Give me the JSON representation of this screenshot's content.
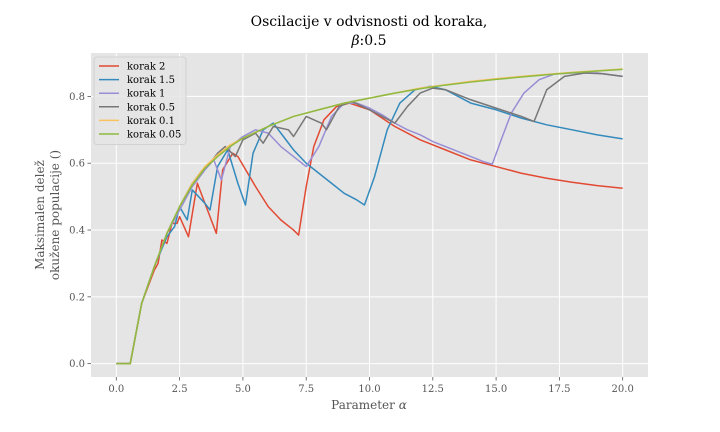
{
  "chart_data": {
    "type": "line",
    "title_line1": "Oscilacije v odvisnosti od koraka,",
    "title_line2_symbol": "β",
    "title_line2_value": ":0.5",
    "xlabel_text": "Parameter ",
    "xlabel_symbol": "α",
    "ylabel_line1": "Maksimalen delež",
    "ylabel_line2": "okužene populacije ()",
    "xlim": [
      -1.0,
      21.0
    ],
    "ylim": [
      -0.04,
      0.93
    ],
    "xticks": [
      0.0,
      2.5,
      5.0,
      7.5,
      10.0,
      12.5,
      15.0,
      17.5,
      20.0
    ],
    "xtick_labels": [
      "0.0",
      "2.5",
      "5.0",
      "7.5",
      "10.0",
      "12.5",
      "15.0",
      "17.5",
      "20.0"
    ],
    "yticks": [
      0.0,
      0.2,
      0.4,
      0.6,
      0.8
    ],
    "ytick_labels": [
      "0.0",
      "0.2",
      "0.4",
      "0.6",
      "0.8"
    ],
    "grid": true,
    "legend_position": "top-left",
    "series": [
      {
        "name": "korak 2",
        "color": "#e24a33",
        "points": [
          [
            0,
            0
          ],
          [
            0.55,
            0
          ],
          [
            1.0,
            0.18
          ],
          [
            1.5,
            0.28
          ],
          [
            1.65,
            0.3
          ],
          [
            1.8,
            0.37
          ],
          [
            2.0,
            0.36
          ],
          [
            2.2,
            0.42
          ],
          [
            2.4,
            0.42
          ],
          [
            2.5,
            0.44
          ],
          [
            2.85,
            0.38
          ],
          [
            3.2,
            0.54
          ],
          [
            3.8,
            0.42
          ],
          [
            3.95,
            0.39
          ],
          [
            4.2,
            0.58
          ],
          [
            4.6,
            0.63
          ],
          [
            4.8,
            0.62
          ],
          [
            5.5,
            0.53
          ],
          [
            6.0,
            0.47
          ],
          [
            6.5,
            0.43
          ],
          [
            7.0,
            0.4
          ],
          [
            7.2,
            0.385
          ],
          [
            7.5,
            0.53
          ],
          [
            7.8,
            0.65
          ],
          [
            8.2,
            0.73
          ],
          [
            8.7,
            0.77
          ],
          [
            9.2,
            0.78
          ],
          [
            10.0,
            0.76
          ],
          [
            11.0,
            0.71
          ],
          [
            12.0,
            0.67
          ],
          [
            13.0,
            0.64
          ],
          [
            14.0,
            0.61
          ],
          [
            15.0,
            0.59
          ],
          [
            16.0,
            0.57
          ],
          [
            17.0,
            0.555
          ],
          [
            18.0,
            0.543
          ],
          [
            19.0,
            0.533
          ],
          [
            20.0,
            0.525
          ]
        ]
      },
      {
        "name": "korak 1.5",
        "color": "#348abd",
        "points": [
          [
            0,
            0
          ],
          [
            0.55,
            0
          ],
          [
            1.0,
            0.18
          ],
          [
            1.5,
            0.29
          ],
          [
            2.0,
            0.38
          ],
          [
            2.3,
            0.41
          ],
          [
            2.5,
            0.47
          ],
          [
            2.8,
            0.43
          ],
          [
            3.0,
            0.52
          ],
          [
            3.5,
            0.48
          ],
          [
            3.7,
            0.46
          ],
          [
            4.0,
            0.59
          ],
          [
            4.4,
            0.64
          ],
          [
            4.8,
            0.54
          ],
          [
            5.1,
            0.475
          ],
          [
            5.4,
            0.63
          ],
          [
            5.8,
            0.7
          ],
          [
            6.2,
            0.72
          ],
          [
            6.6,
            0.68
          ],
          [
            7.0,
            0.64
          ],
          [
            7.5,
            0.6
          ],
          [
            8.0,
            0.57
          ],
          [
            8.5,
            0.54
          ],
          [
            9.0,
            0.51
          ],
          [
            9.5,
            0.49
          ],
          [
            9.8,
            0.475
          ],
          [
            10.2,
            0.56
          ],
          [
            10.7,
            0.7
          ],
          [
            11.2,
            0.78
          ],
          [
            11.8,
            0.82
          ],
          [
            12.4,
            0.83
          ],
          [
            13.0,
            0.82
          ],
          [
            14.0,
            0.78
          ],
          [
            15.0,
            0.76
          ],
          [
            16.0,
            0.735
          ],
          [
            17.0,
            0.715
          ],
          [
            18.0,
            0.7
          ],
          [
            19.0,
            0.685
          ],
          [
            20.0,
            0.673
          ]
        ]
      },
      {
        "name": "korak 1",
        "color": "#988ed5",
        "points": [
          [
            0,
            0
          ],
          [
            0.55,
            0
          ],
          [
            1.0,
            0.18
          ],
          [
            1.5,
            0.29
          ],
          [
            2.0,
            0.39
          ],
          [
            2.5,
            0.46
          ],
          [
            3.0,
            0.53
          ],
          [
            3.5,
            0.58
          ],
          [
            3.85,
            0.61
          ],
          [
            4.15,
            0.55
          ],
          [
            4.5,
            0.65
          ],
          [
            5.0,
            0.68
          ],
          [
            5.5,
            0.7
          ],
          [
            6.0,
            0.69
          ],
          [
            6.5,
            0.65
          ],
          [
            7.0,
            0.62
          ],
          [
            7.5,
            0.59
          ],
          [
            8.0,
            0.65
          ],
          [
            8.5,
            0.74
          ],
          [
            9.0,
            0.78
          ],
          [
            9.5,
            0.78
          ],
          [
            10.0,
            0.765
          ],
          [
            10.5,
            0.745
          ],
          [
            11.0,
            0.72
          ],
          [
            11.5,
            0.7
          ],
          [
            12.0,
            0.685
          ],
          [
            12.5,
            0.665
          ],
          [
            13.0,
            0.65
          ],
          [
            13.5,
            0.635
          ],
          [
            14.0,
            0.62
          ],
          [
            14.5,
            0.605
          ],
          [
            14.85,
            0.597
          ],
          [
            15.2,
            0.67
          ],
          [
            15.6,
            0.75
          ],
          [
            16.1,
            0.81
          ],
          [
            16.7,
            0.85
          ],
          [
            17.3,
            0.867
          ],
          [
            18.0,
            0.87
          ],
          [
            19.0,
            0.87
          ],
          [
            20.0,
            0.86
          ]
        ]
      },
      {
        "name": "korak 0.5",
        "color": "#777777",
        "points": [
          [
            0,
            0
          ],
          [
            0.55,
            0
          ],
          [
            1.0,
            0.18
          ],
          [
            1.5,
            0.29
          ],
          [
            2.0,
            0.39
          ],
          [
            2.5,
            0.47
          ],
          [
            3.0,
            0.54
          ],
          [
            3.4,
            0.58
          ],
          [
            3.7,
            0.6
          ],
          [
            4.0,
            0.63
          ],
          [
            4.3,
            0.65
          ],
          [
            4.7,
            0.62
          ],
          [
            5.0,
            0.67
          ],
          [
            5.5,
            0.69
          ],
          [
            5.8,
            0.66
          ],
          [
            6.2,
            0.71
          ],
          [
            6.8,
            0.7
          ],
          [
            7.0,
            0.68
          ],
          [
            7.5,
            0.74
          ],
          [
            8.1,
            0.72
          ],
          [
            8.3,
            0.7
          ],
          [
            8.8,
            0.77
          ],
          [
            9.3,
            0.785
          ],
          [
            10.0,
            0.76
          ],
          [
            10.5,
            0.74
          ],
          [
            11.0,
            0.72
          ],
          [
            11.5,
            0.77
          ],
          [
            12.0,
            0.81
          ],
          [
            12.5,
            0.825
          ],
          [
            13.0,
            0.82
          ],
          [
            14.0,
            0.79
          ],
          [
            15.0,
            0.765
          ],
          [
            16.0,
            0.74
          ],
          [
            16.5,
            0.725
          ],
          [
            17.0,
            0.82
          ],
          [
            17.7,
            0.86
          ],
          [
            18.5,
            0.87
          ],
          [
            19.2,
            0.868
          ],
          [
            20.0,
            0.86
          ]
        ]
      },
      {
        "name": "korak 0.1",
        "color": "#fbc15e",
        "points": [
          [
            0,
            0
          ],
          [
            0.55,
            0
          ],
          [
            1.0,
            0.18
          ],
          [
            1.5,
            0.29
          ],
          [
            2.0,
            0.39
          ],
          [
            2.5,
            0.47
          ],
          [
            3.0,
            0.54
          ],
          [
            3.5,
            0.59
          ],
          [
            4.0,
            0.625
          ],
          [
            4.5,
            0.655
          ],
          [
            5.0,
            0.675
          ],
          [
            6.0,
            0.71
          ],
          [
            7.0,
            0.74
          ],
          [
            8.0,
            0.76
          ],
          [
            9.0,
            0.78
          ],
          [
            10.0,
            0.795
          ],
          [
            11.0,
            0.81
          ],
          [
            12.0,
            0.825
          ],
          [
            13.0,
            0.835
          ],
          [
            14.0,
            0.845
          ],
          [
            15.0,
            0.853
          ],
          [
            16.0,
            0.86
          ],
          [
            17.0,
            0.866
          ],
          [
            18.0,
            0.872
          ],
          [
            19.0,
            0.877
          ],
          [
            20.0,
            0.882
          ]
        ]
      },
      {
        "name": "korak 0.05",
        "color": "#8eba42",
        "points": [
          [
            0,
            0
          ],
          [
            0.55,
            0
          ],
          [
            1.0,
            0.18
          ],
          [
            1.5,
            0.29
          ],
          [
            2.0,
            0.39
          ],
          [
            2.5,
            0.47
          ],
          [
            3.0,
            0.535
          ],
          [
            3.5,
            0.585
          ],
          [
            4.0,
            0.62
          ],
          [
            4.5,
            0.65
          ],
          [
            5.0,
            0.675
          ],
          [
            6.0,
            0.71
          ],
          [
            7.0,
            0.74
          ],
          [
            8.0,
            0.76
          ],
          [
            9.0,
            0.78
          ],
          [
            10.0,
            0.795
          ],
          [
            11.0,
            0.81
          ],
          [
            12.0,
            0.823
          ],
          [
            13.0,
            0.834
          ],
          [
            14.0,
            0.843
          ],
          [
            15.0,
            0.851
          ],
          [
            16.0,
            0.858
          ],
          [
            17.0,
            0.865
          ],
          [
            18.0,
            0.871
          ],
          [
            19.0,
            0.876
          ],
          [
            20.0,
            0.881
          ]
        ]
      }
    ]
  }
}
